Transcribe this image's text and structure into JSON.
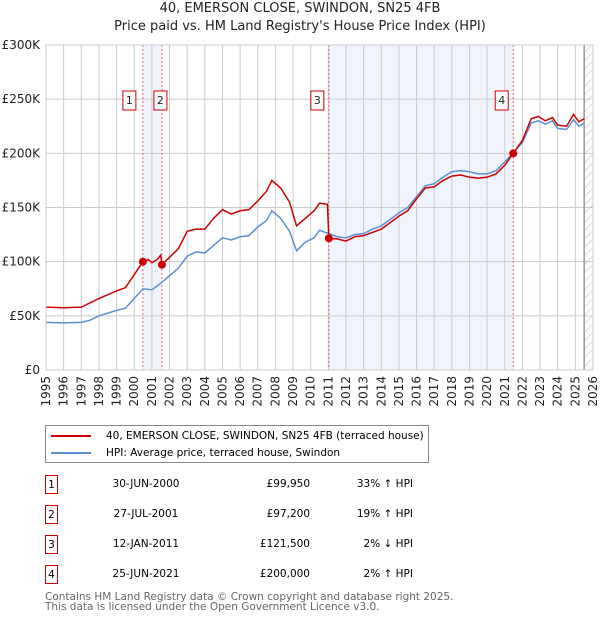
{
  "chart_data": {
    "type": "line",
    "title": "40, EMERSON CLOSE, SWINDON, SN25 4FB",
    "subtitle": "Price paid vs. HM Land Registry's House Price Index (HPI)",
    "xlim": [
      1995,
      2026
    ],
    "ylim": [
      0,
      300000
    ],
    "y_ticks": [
      "£0",
      "£50K",
      "£100K",
      "£150K",
      "£200K",
      "£250K",
      "£300K"
    ],
    "x_ticks": [
      "1995",
      "1996",
      "1997",
      "1998",
      "1999",
      "2000",
      "2001",
      "2002",
      "2003",
      "2004",
      "2005",
      "2006",
      "2007",
      "2008",
      "2009",
      "2010",
      "2011",
      "2012",
      "2013",
      "2014",
      "2015",
      "2016",
      "2017",
      "2018",
      "2019",
      "2020",
      "2021",
      "2022",
      "2023",
      "2024",
      "2025",
      "2026"
    ],
    "grid": true,
    "series": [
      {
        "name": "40, EMERSON CLOSE, SWINDON, SN25 4FB (terraced house)",
        "color": "#cc0000",
        "x": [
          1995,
          1996,
          1997,
          1998,
          1999,
          1999.5,
          2000,
          2000.49,
          2000.8,
          2001,
          2001.3,
          2001.5,
          2001.57,
          2002,
          2002.5,
          2003,
          2003.5,
          2004,
          2004.5,
          2005,
          2005.5,
          2006,
          2006.5,
          2007,
          2007.5,
          2007.8,
          2008.3,
          2008.8,
          2009.2,
          2009.7,
          2010.2,
          2010.5,
          2010.95,
          2011.03,
          2011.5,
          2012,
          2012.5,
          2013,
          2013.5,
          2014,
          2014.5,
          2015,
          2015.5,
          2016,
          2016.5,
          2017,
          2017.5,
          2018,
          2018.5,
          2019,
          2019.5,
          2020,
          2020.5,
          2021,
          2021.48,
          2022,
          2022.5,
          2022.9,
          2023.3,
          2023.7,
          2024,
          2024.5,
          2024.9,
          2025.2,
          2025.5
        ],
        "y": [
          58000,
          57500,
          58000,
          66000,
          73000,
          76000,
          88000,
          99950,
          102000,
          99000,
          102000,
          106000,
          97200,
          104000,
          112000,
          128000,
          130000,
          130000,
          140000,
          148000,
          144000,
          147000,
          148000,
          156000,
          165000,
          175000,
          168000,
          155000,
          133000,
          140000,
          147000,
          154000,
          153000,
          121500,
          121000,
          119000,
          123000,
          124000,
          127000,
          130000,
          136000,
          142000,
          147000,
          158000,
          168000,
          169000,
          175000,
          179000,
          180000,
          178000,
          177000,
          178000,
          181000,
          189000,
          200000,
          212000,
          232000,
          234000,
          230000,
          233000,
          226000,
          225000,
          236000,
          229000,
          232000
        ]
      },
      {
        "name": "HPI: Average price, terraced house, Swindon",
        "color": "#5b8fd4",
        "x": [
          1995,
          1996,
          1997,
          1997.5,
          1998,
          1999,
          1999.5,
          2000,
          2000.5,
          2001,
          2001.5,
          2002,
          2002.5,
          2003,
          2003.5,
          2004,
          2004.5,
          2005,
          2005.5,
          2006,
          2006.5,
          2007,
          2007.5,
          2007.8,
          2008.3,
          2008.8,
          2009.2,
          2009.7,
          2010.2,
          2010.5,
          2011,
          2011.5,
          2012,
          2012.5,
          2013,
          2013.5,
          2014,
          2014.5,
          2015,
          2015.5,
          2016,
          2016.5,
          2017,
          2017.5,
          2018,
          2018.5,
          2019,
          2019.5,
          2020,
          2020.5,
          2021,
          2021.5,
          2022,
          2022.5,
          2022.9,
          2023.3,
          2023.7,
          2024,
          2024.5,
          2024.9,
          2025.2,
          2025.5
        ],
        "y": [
          44000,
          43500,
          44000,
          46000,
          50000,
          55000,
          57000,
          66000,
          75000,
          74000,
          80000,
          87000,
          94000,
          105000,
          109000,
          108000,
          115000,
          122000,
          120000,
          123000,
          124000,
          132000,
          138000,
          147000,
          140000,
          128000,
          110000,
          118000,
          122000,
          129000,
          126000,
          123000,
          122000,
          125000,
          126000,
          130000,
          133000,
          139000,
          145000,
          150000,
          160000,
          170000,
          172000,
          178000,
          183000,
          184000,
          183000,
          181000,
          181000,
          184000,
          192000,
          201000,
          210000,
          228000,
          230000,
          227000,
          230000,
          223000,
          222000,
          231000,
          225000,
          228000
        ]
      }
    ],
    "sales": [
      {
        "id": "1",
        "x": 2000.49,
        "price": 99950
      },
      {
        "id": "2",
        "x": 2001.57,
        "price": 97200
      },
      {
        "id": "3",
        "x": 2011.03,
        "price": 121500
      },
      {
        "id": "4",
        "x": 2021.48,
        "price": 200000
      }
    ],
    "shaded_ranges": [
      [
        2000.49,
        2001.57
      ],
      [
        2011.03,
        2021.48
      ]
    ],
    "forecast_from": 2025.5
  },
  "legend": {
    "property": "40, EMERSON CLOSE, SWINDON, SN25 4FB (terraced house)",
    "hpi": "HPI: Average price, terraced house, Swindon"
  },
  "transactions": [
    {
      "id": "1",
      "date": "30-JUN-2000",
      "price": "£99,950",
      "delta": "33% ↑ HPI"
    },
    {
      "id": "2",
      "date": "27-JUL-2001",
      "price": "£97,200",
      "delta": "19% ↑ HPI"
    },
    {
      "id": "3",
      "date": "12-JAN-2011",
      "price": "£121,500",
      "delta": "2% ↓ HPI"
    },
    {
      "id": "4",
      "date": "25-JUN-2021",
      "price": "£200,000",
      "delta": "2% ↑ HPI"
    }
  ],
  "footer": {
    "line1": "Contains HM Land Registry data © Crown copyright and database right 2025.",
    "line2": "This data is licensed under the Open Government Licence v3.0."
  }
}
